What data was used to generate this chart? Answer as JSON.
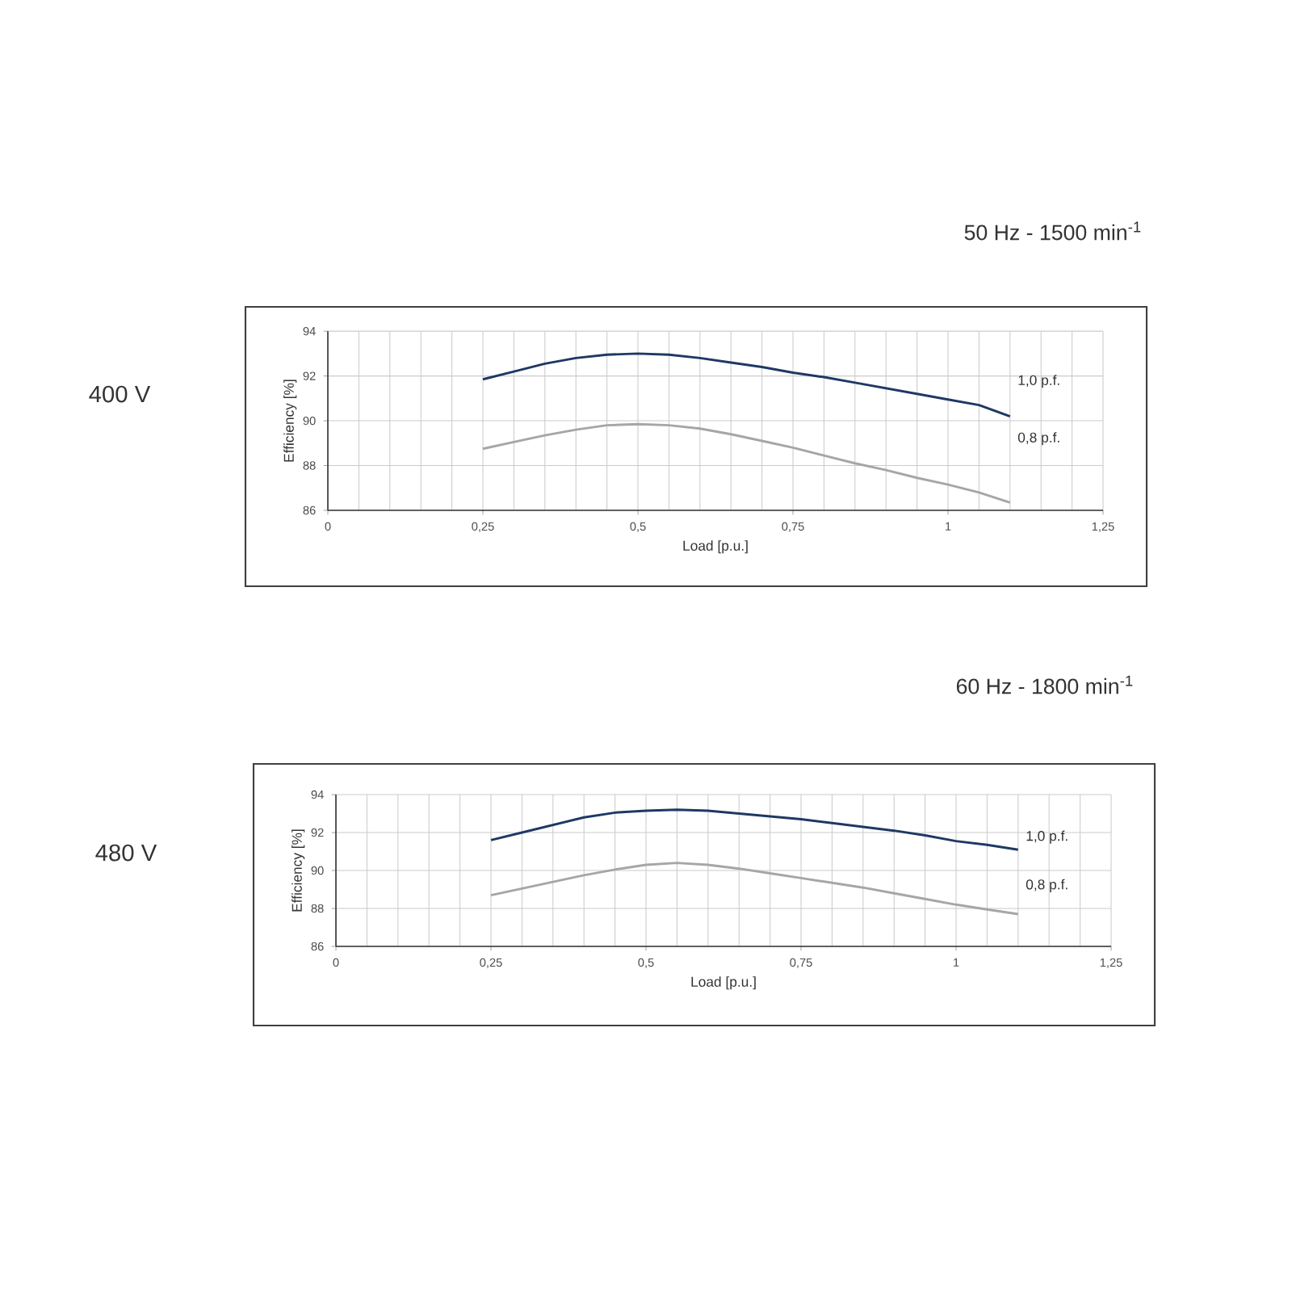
{
  "chart_data": [
    {
      "type": "line",
      "title": "50 Hz - 1500 min$^{-1}$",
      "annotations": [
        "400 V"
      ],
      "xlabel": "Load [p.u.]",
      "ylabel": "Efficiency [%]",
      "xlim": [
        0,
        1.25
      ],
      "ylim": [
        86,
        94
      ],
      "xticks": [
        0,
        {
          "value": 0.25,
          "label": "0,25"
        },
        {
          "value": 0.5,
          "label": "0,5"
        },
        {
          "value": 0.75,
          "label": "0,75"
        },
        1,
        {
          "value": 1.25,
          "label": "1,25"
        }
      ],
      "yticks": [
        86,
        88,
        90,
        92,
        94
      ],
      "grid": true,
      "x": [
        0.25,
        0.3,
        0.35,
        0.4,
        0.45,
        0.5,
        0.55,
        0.6,
        0.65,
        0.7,
        0.75,
        0.8,
        0.85,
        0.9,
        0.95,
        1.0,
        1.05,
        1.1
      ],
      "series": [
        {
          "name": "1,0 p.f.",
          "color": "#1f3864",
          "values": [
            91.85,
            92.2,
            92.55,
            92.8,
            92.95,
            93.0,
            92.95,
            92.8,
            92.6,
            92.4,
            92.15,
            91.95,
            91.7,
            91.45,
            91.2,
            90.95,
            90.7,
            90.2
          ]
        },
        {
          "name": "0,8 p.f.",
          "color": "#a6a6a6",
          "values": [
            88.75,
            89.05,
            89.35,
            89.6,
            89.8,
            89.85,
            89.8,
            89.65,
            89.4,
            89.1,
            88.8,
            88.45,
            88.1,
            87.8,
            87.45,
            87.15,
            86.8,
            86.35
          ]
        }
      ]
    },
    {
      "type": "line",
      "title": "60 Hz - 1800 min$^{-1}$",
      "annotations": [
        "480 V"
      ],
      "xlabel": "Load [p.u.]",
      "ylabel": "Efficiency [%]",
      "xlim": [
        0,
        1.25
      ],
      "ylim": [
        86,
        94
      ],
      "xticks": [
        0,
        {
          "value": 0.25,
          "label": "0,25"
        },
        {
          "value": 0.5,
          "label": "0,5"
        },
        {
          "value": 0.75,
          "label": "0,75"
        },
        1,
        {
          "value": 1.25,
          "label": "1,25"
        }
      ],
      "yticks": [
        86,
        88,
        90,
        92,
        94
      ],
      "grid": true,
      "x": [
        0.25,
        0.3,
        0.35,
        0.4,
        0.45,
        0.5,
        0.55,
        0.6,
        0.65,
        0.7,
        0.75,
        0.8,
        0.85,
        0.9,
        0.95,
        1.0,
        1.05,
        1.1
      ],
      "series": [
        {
          "name": "1,0 p.f.",
          "color": "#1f3864",
          "values": [
            91.6,
            92.0,
            92.4,
            92.8,
            93.05,
            93.15,
            93.2,
            93.15,
            93.0,
            92.85,
            92.7,
            92.5,
            92.3,
            92.1,
            91.85,
            91.55,
            91.35,
            91.1
          ]
        },
        {
          "name": "0,8 p.f.",
          "color": "#a6a6a6",
          "values": [
            88.7,
            89.05,
            89.4,
            89.75,
            90.05,
            90.3,
            90.4,
            90.3,
            90.1,
            89.85,
            89.6,
            89.35,
            89.1,
            88.8,
            88.5,
            88.2,
            87.95,
            87.7
          ]
        }
      ]
    }
  ]
}
